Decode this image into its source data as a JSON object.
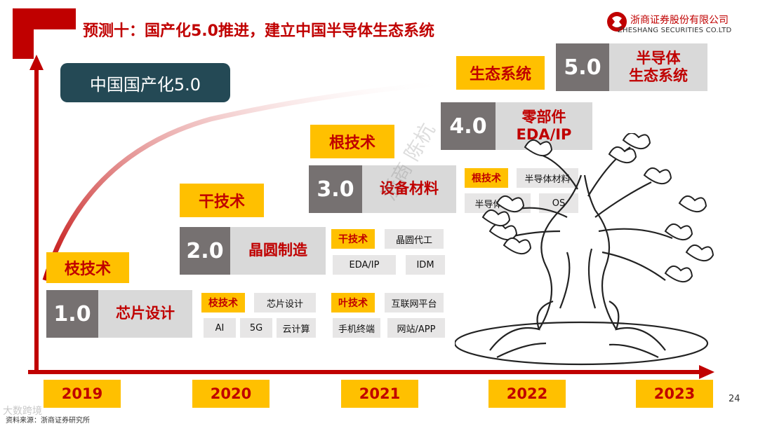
{
  "header": {
    "title": "预测十：国产化5.0推进，建立中国半导体生态系统",
    "logo_text": "浙商证券股份有限公司",
    "logo_en": "ZHESHANG SECURITIES CO.LTD"
  },
  "main_badge": "中国国产化5.0",
  "generations": [
    {
      "tag": "枝技术",
      "num": "1.0",
      "label": "芯片设计"
    },
    {
      "tag": "干技术",
      "num": "2.0",
      "label": "晶圆制造"
    },
    {
      "tag": "根技术",
      "num": "3.0",
      "label": "设备材料"
    },
    {
      "tag": "",
      "num": "4.0",
      "label": "零部件\nEDA/IP"
    },
    {
      "tag": "生态系统",
      "num": "5.0",
      "label": "半导体\n生态系统"
    }
  ],
  "tag_groups": {
    "branch": {
      "title": "枝技术",
      "items": [
        "芯片设计",
        "AI",
        "5G",
        "云计算"
      ]
    },
    "trunk": {
      "title": "干技术",
      "items": [
        "晶圆代工",
        "EDA/IP",
        "IDM"
      ]
    },
    "leaf": {
      "title": "叶技术",
      "items": [
        "互联网平台",
        "手机终端",
        "网站/APP"
      ]
    },
    "root": {
      "title": "根技术",
      "items": [
        "半导体材料",
        "半导体设备",
        "OS"
      ]
    }
  },
  "years": [
    "2019",
    "2020",
    "2021",
    "2022",
    "2023"
  ],
  "footer": {
    "source": "资料来源：浙商证券研究所",
    "page": "24",
    "watermark": "浙商 陈杭",
    "corner_watermark": "大数跨境"
  },
  "colors": {
    "accent_red": "#c00000",
    "yellow": "#ffc000",
    "dark_teal": "#244955",
    "gray_dark": "#767171",
    "gray_light": "#d9d9d9"
  }
}
